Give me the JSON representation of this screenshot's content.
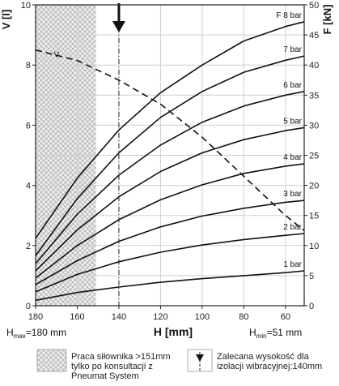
{
  "chart_data": {
    "type": "line",
    "x": {
      "label": "H [mm]",
      "ticks": [
        180,
        160,
        140,
        120,
        100,
        80,
        60
      ],
      "range": [
        180,
        51
      ],
      "reversed": true
    },
    "y_left": {
      "label": "V [l]",
      "ticks": [
        0,
        2,
        4,
        6,
        8,
        10
      ],
      "range": [
        0,
        10
      ]
    },
    "y_right": {
      "label": "F [kN]",
      "ticks": [
        0,
        5,
        10,
        15,
        20,
        25,
        30,
        35,
        40,
        45,
        50
      ],
      "range": [
        0,
        50
      ]
    },
    "grid": true,
    "force_curves": [
      {
        "name": "1 bar",
        "label": "1 bar",
        "x": [
          180,
          160,
          140,
          120,
          100,
          80,
          60,
          51
        ],
        "y": [
          0.9,
          2.2,
          3.1,
          3.9,
          4.5,
          5.0,
          5.5,
          5.8
        ]
      },
      {
        "name": "2 bar",
        "label": "2 bar",
        "x": [
          180,
          160,
          140,
          120,
          100,
          80,
          60,
          51
        ],
        "y": [
          2.3,
          5.2,
          7.3,
          8.9,
          10.1,
          11.0,
          11.7,
          12.0
        ]
      },
      {
        "name": "3 bar",
        "label": "3 bar",
        "x": [
          180,
          160,
          140,
          120,
          100,
          80,
          60,
          51
        ],
        "y": [
          3.5,
          7.5,
          10.7,
          13.1,
          14.9,
          16.2,
          17.2,
          17.5
        ]
      },
      {
        "name": "4 bar",
        "label": "4 bar",
        "x": [
          180,
          160,
          140,
          120,
          100,
          80,
          60,
          51
        ],
        "y": [
          4.6,
          10.0,
          14.3,
          17.6,
          20.1,
          22.0,
          23.2,
          23.6
        ]
      },
      {
        "name": "5 bar",
        "label": "5 bar",
        "x": [
          180,
          160,
          140,
          120,
          100,
          80,
          60,
          51
        ],
        "y": [
          5.8,
          12.6,
          18.1,
          22.3,
          25.4,
          27.6,
          29.1,
          29.6
        ]
      },
      {
        "name": "6 bar",
        "label": "6 bar",
        "x": [
          180,
          160,
          140,
          120,
          100,
          80,
          60,
          51
        ],
        "y": [
          7.0,
          15.2,
          21.7,
          26.7,
          30.5,
          33.2,
          35.0,
          35.6
        ]
      },
      {
        "name": "7 bar",
        "label": "7 bar",
        "x": [
          180,
          160,
          140,
          120,
          100,
          80,
          60,
          51
        ],
        "y": [
          8.3,
          17.8,
          25.4,
          31.3,
          35.6,
          38.8,
          40.8,
          41.5
        ]
      },
      {
        "name": "8 bar",
        "label": "F 8 bar",
        "x": [
          180,
          160,
          140,
          120,
          100,
          80,
          60,
          51
        ],
        "y": [
          11.2,
          21.2,
          29.2,
          35.4,
          40.0,
          44.0,
          46.4,
          47.2
        ]
      }
    ],
    "volume_curve": {
      "name": "V",
      "label": "V",
      "style": "dashed",
      "x": [
        180,
        160,
        140,
        120,
        100,
        80,
        60,
        51
      ],
      "y": [
        8.5,
        8.15,
        7.5,
        6.7,
        5.6,
        4.3,
        3.0,
        2.5
      ]
    },
    "hatched_region": {
      "x_from": 180,
      "x_to": 151
    },
    "recommended_height": {
      "x": 140
    },
    "annotations": {
      "hmax_label": "max",
      "hmax_value": "=180 mm",
      "hmin_label": "min",
      "hmin_value": "=51 mm"
    },
    "legend": [
      {
        "icon": "hatch",
        "lines": [
          "Praca siłownika >151mm",
          "tylko po konsultacji z",
          "Pneumat System"
        ]
      },
      {
        "icon": "arrow",
        "lines": [
          "Zalecana wysokość dla",
          "izolacji wibracyjnej:140mm"
        ]
      }
    ]
  }
}
